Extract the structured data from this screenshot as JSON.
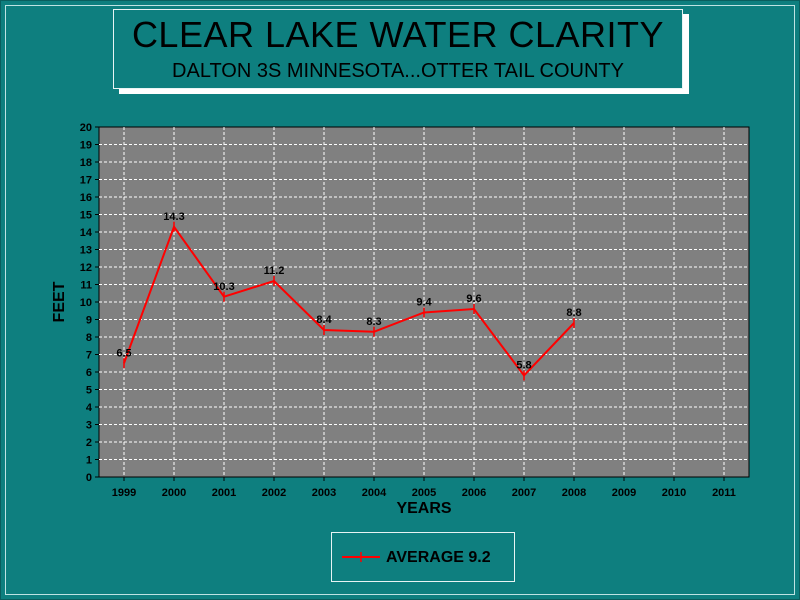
{
  "chart_data": {
    "type": "line",
    "title": "CLEAR LAKE WATER CLARITY",
    "subtitle": "DALTON 3S MINNESOTA...OTTER TAIL COUNTY",
    "xlabel": "YEARS",
    "ylabel": "FEET",
    "categories": [
      "1999",
      "2000",
      "2001",
      "2002",
      "2003",
      "2004",
      "2005",
      "2006",
      "2007",
      "2008",
      "2009",
      "2010",
      "2011"
    ],
    "ylim": [
      0,
      20
    ],
    "yticks": [
      "0",
      "1",
      "2",
      "3",
      "4",
      "5",
      "6",
      "7",
      "8",
      "9",
      "10",
      "11",
      "12",
      "13",
      "14",
      "15",
      "16",
      "17",
      "18",
      "19",
      "20"
    ],
    "grid": true,
    "legend_position": "bottom",
    "series": [
      {
        "name": "AVERAGE 9.2",
        "color": "#ff0000",
        "values": [
          6.5,
          14.3,
          10.3,
          11.2,
          8.4,
          8.3,
          9.4,
          9.6,
          5.8,
          8.8,
          null,
          null,
          null
        ],
        "data_labels": [
          "6.5",
          "14.3",
          "10.3",
          "11.2",
          "8.4",
          "8.3",
          "9.4",
          "9.6",
          "5.8",
          "8.8",
          "",
          "",
          ""
        ]
      }
    ]
  },
  "colors": {
    "background": "#0e7f7f",
    "plot_area": "#808080",
    "grid": "#ffffff",
    "line": "#ff0000"
  }
}
